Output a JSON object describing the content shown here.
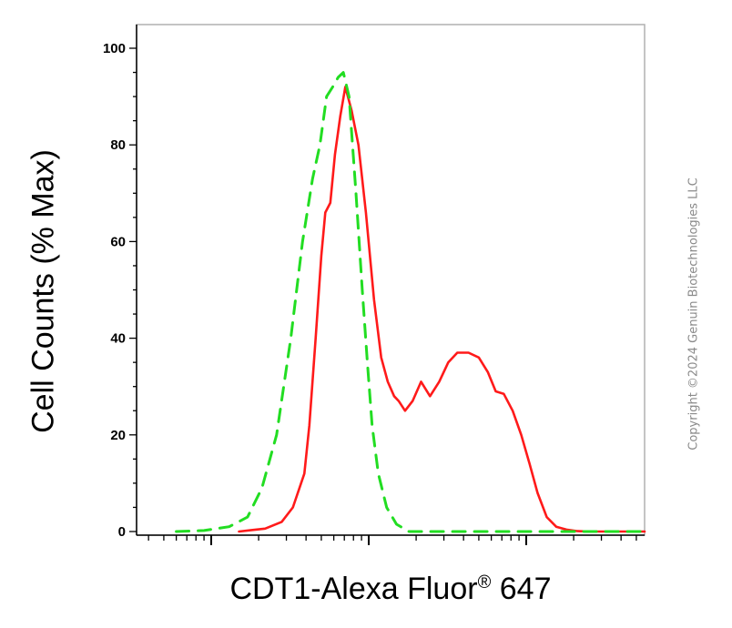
{
  "chart_data": {
    "type": "line",
    "xlabel": "CDT1-Alexa Fluor",
    "xlabel_mark": "®",
    "xlabel_suffix": " 647",
    "ylabel": "Cell Counts (% Max)",
    "xscale": "log",
    "xlim": [
      10,
      100000
    ],
    "ylim": [
      0,
      100
    ],
    "yticks": [
      "0",
      "20",
      "40",
      "60",
      "80",
      "100"
    ],
    "grid": false,
    "series": [
      {
        "color": "#ff1a1a",
        "style": "solid",
        "x": [
          150,
          180,
          220,
          280,
          330,
          390,
          420,
          460,
          500,
          530,
          570,
          610,
          660,
          710,
          780,
          860,
          960,
          1080,
          1200,
          1320,
          1450,
          1550,
          1700,
          1900,
          2150,
          2450,
          2800,
          3200,
          3650,
          4300,
          5000,
          5700,
          6400,
          7200,
          8200,
          9300,
          10500,
          11800,
          13500,
          15500,
          18000,
          21000,
          25000,
          30000,
          36000,
          50000,
          100000
        ],
        "y": [
          0,
          0.3,
          0.6,
          2,
          5,
          12,
          22,
          40,
          57,
          66,
          68,
          78,
          86,
          92,
          87,
          80,
          66,
          48,
          36,
          31,
          28,
          27,
          25,
          27,
          31,
          28,
          31,
          35,
          37,
          37,
          36,
          33,
          29,
          28.5,
          25,
          20,
          14,
          8,
          3,
          1,
          0.4,
          0.1,
          0,
          0,
          0,
          0,
          0
        ]
      },
      {
        "color": "#22dd22",
        "style": "dashed",
        "x": [
          60,
          90,
          130,
          170,
          210,
          260,
          320,
          380,
          440,
          490,
          540,
          590,
          640,
          690,
          750,
          830,
          910,
          980,
          1050,
          1150,
          1300,
          1500,
          1800,
          2500,
          4000,
          8000,
          20000,
          50000,
          100000
        ],
        "y": [
          0,
          0.2,
          1,
          3,
          9,
          20,
          40,
          60,
          73,
          80,
          90,
          92,
          94,
          95,
          90,
          70,
          50,
          35,
          22,
          12,
          5,
          1.5,
          0,
          0,
          0,
          0,
          0,
          0,
          0
        ]
      }
    ]
  },
  "watermark": "Copyright ©2024 Genuin Biotechnologies LLC"
}
